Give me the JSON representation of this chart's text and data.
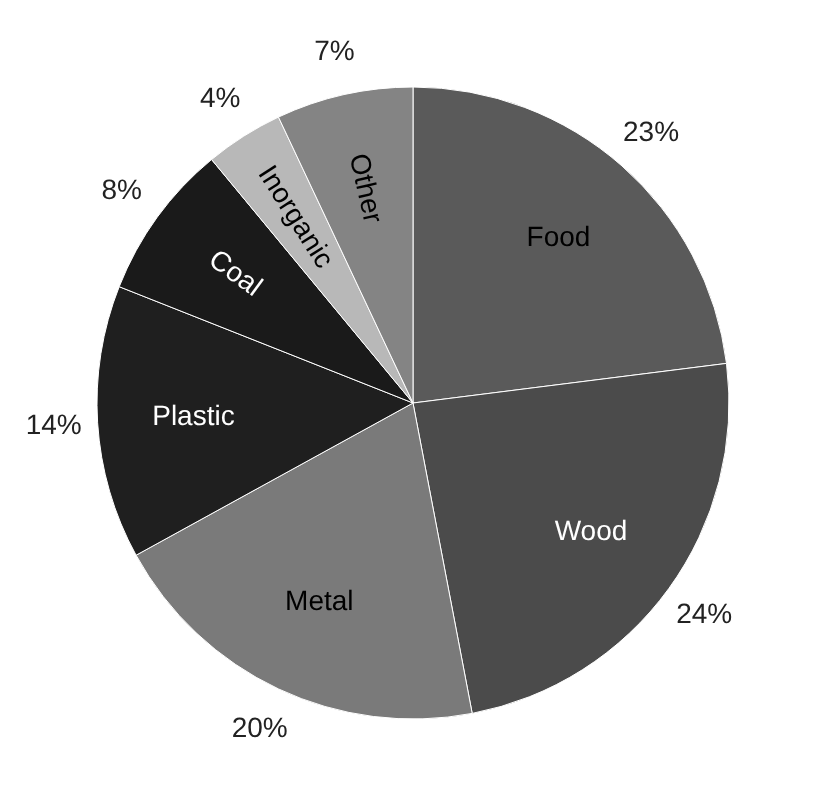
{
  "chart_data": {
    "type": "pie",
    "categories": [
      "Food",
      "Wood",
      "Metal",
      "Plastic",
      "Coal",
      "Inorganic",
      "Other"
    ],
    "values": [
      23,
      24,
      20,
      14,
      8,
      4,
      7
    ],
    "value_labels": [
      "23%",
      "24%",
      "20%",
      "14%",
      "8%",
      "4%",
      "7%"
    ],
    "colors": [
      "#5a5a5a",
      "#4b4b4b",
      "#7a7a7a",
      "#1f1f1f",
      "#1a1a1a",
      "#b8b8b8",
      "#848484"
    ]
  }
}
